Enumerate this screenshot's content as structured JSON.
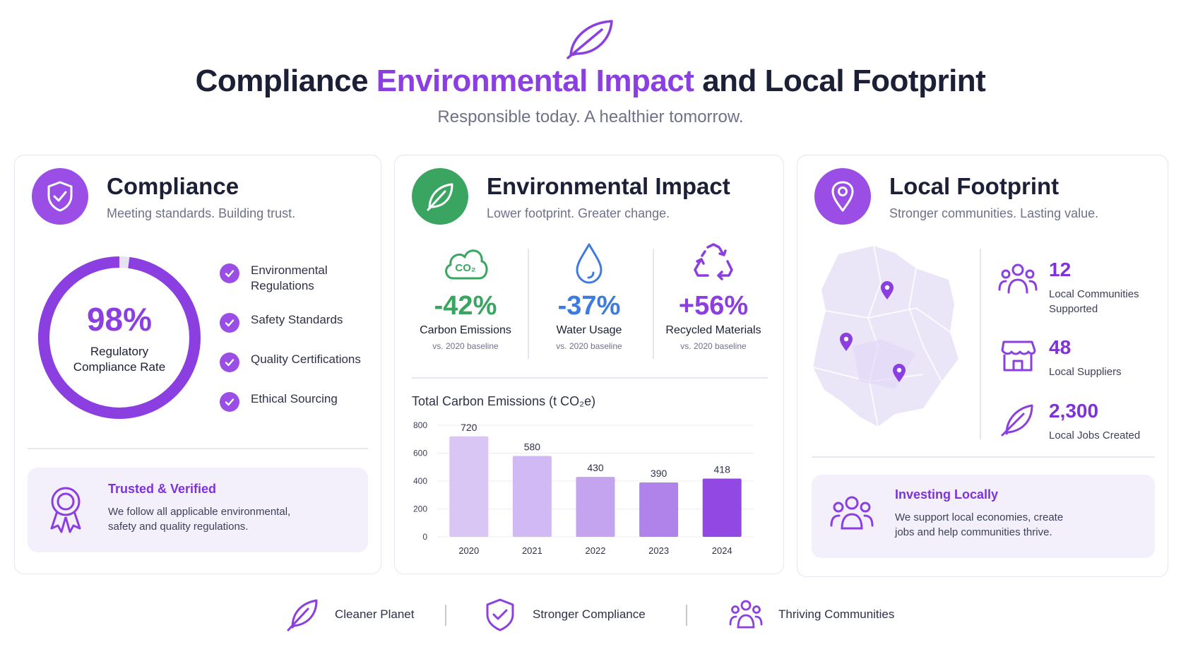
{
  "header": {
    "title_part1": "Compliance",
    "title_accent": "Environmental Impact",
    "title_part2": "and Local Footprint",
    "tagline": "Responsible today. A healthier tomorrow.",
    "logo_icon": "leaf-icon"
  },
  "colors": {
    "accent": "#8b3fe0",
    "green": "#3aa561",
    "blue": "#3e7be0",
    "text_dark": "#1c2036"
  },
  "compliance": {
    "title": "Compliance",
    "subtitle": "Meeting standards. Building trust.",
    "icon": "shield-check-icon",
    "rate_value": "98%",
    "rate_fraction": 0.98,
    "rate_label_line1": "Regulatory",
    "rate_label_line2": "Compliance Rate",
    "checklist": [
      {
        "line1": "Environmental",
        "line2": "Regulations"
      },
      {
        "line1": "Safety Standards",
        "line2": ""
      },
      {
        "line1": "Quality Certifications",
        "line2": ""
      },
      {
        "line1": "Ethical Sourcing",
        "line2": ""
      }
    ],
    "trust_title": "Trusted & Verified",
    "trust_text_line1": "We follow all applicable environmental,",
    "trust_text_line2": "safety and quality regulations."
  },
  "environment": {
    "title": "Environmental Impact",
    "subtitle": "Lower footprint. Greater change.",
    "icon": "leaf-icon",
    "kpis": [
      {
        "icon": "co2-cloud-icon",
        "icon_text": "CO₂",
        "value": "-42%",
        "label": "Carbon Emissions",
        "note": "vs. 2020 baseline",
        "color": "#3aa561"
      },
      {
        "icon": "water-drop-icon",
        "value": "-37%",
        "label": "Water Usage",
        "note": "vs. 2020 baseline",
        "color": "#3e7be0"
      },
      {
        "icon": "recycle-icon",
        "value": "+56%",
        "label": "Recycled Materials",
        "note": "vs. 2020 baseline",
        "color": "#8b3fe0"
      }
    ],
    "chart_title": "Total Carbon Emissions (t CO₂e)"
  },
  "chart_data": {
    "type": "bar",
    "title": "Total Carbon Emissions (t CO₂e)",
    "categories": [
      "2020",
      "2021",
      "2022",
      "2023",
      "2024"
    ],
    "values": [
      720,
      580,
      430,
      390,
      418
    ],
    "data_labels": [
      "720",
      "580",
      "430",
      "390",
      "418"
    ],
    "y_ticks": [
      "0",
      "200",
      "400",
      "600",
      "800"
    ],
    "ylim": [
      0,
      800
    ],
    "grid": true,
    "bar_colors": [
      "#d9c6f5",
      "#d1b9f3",
      "#c4a3ef",
      "#b083ea",
      "#9248e3"
    ]
  },
  "local": {
    "title": "Local Footprint",
    "subtitle": "Stronger communities. Lasting value.",
    "icon": "map-pin-icon",
    "stats": [
      {
        "icon": "people-group-icon",
        "value": "12",
        "label_line1": "Local Communities",
        "label_line2": "Supported"
      },
      {
        "icon": "storefront-icon",
        "value": "48",
        "label_line1": "Local Suppliers",
        "label_line2": ""
      },
      {
        "icon": "leaf-icon",
        "value": "2,300",
        "label_line1": "Local Jobs Created",
        "label_line2": ""
      }
    ],
    "invest_title": "Investing Locally",
    "invest_text_line1": "We support local economies, create",
    "invest_text_line2": "jobs and help communities thrive."
  },
  "footer": {
    "items": [
      {
        "icon": "leaf-icon",
        "label": "Cleaner Planet"
      },
      {
        "icon": "shield-check-icon",
        "label": "Stronger Compliance"
      },
      {
        "icon": "people-group-icon",
        "label": "Thriving Communities"
      }
    ]
  }
}
